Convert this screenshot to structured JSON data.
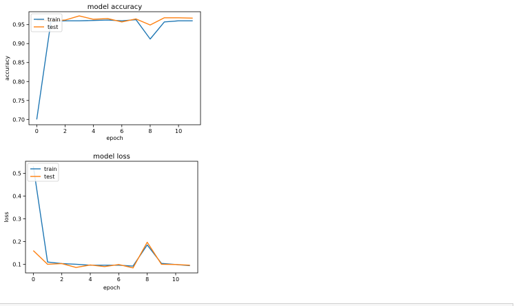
{
  "chart_data": [
    {
      "type": "line",
      "title": "model accuracy",
      "xlabel": "epoch",
      "ylabel": "accuracy",
      "xlim": [
        -0.55,
        11.55
      ],
      "ylim": [
        0.686,
        0.984
      ],
      "xticks": [
        0,
        2,
        4,
        6,
        8,
        10
      ],
      "yticks": [
        0.7,
        0.75,
        0.8,
        0.85,
        0.9,
        0.95
      ],
      "ytick_labels": [
        "0.70",
        "0.75",
        "0.80",
        "0.85",
        "0.90",
        "0.95"
      ],
      "legend": "upper left",
      "grid": false,
      "x": [
        0,
        1,
        2,
        3,
        4,
        5,
        6,
        7,
        8,
        9,
        10,
        11
      ],
      "series": [
        {
          "name": "train",
          "color": "#1f77b4",
          "values": [
            0.7,
            0.958,
            0.96,
            0.96,
            0.961,
            0.962,
            0.96,
            0.963,
            0.912,
            0.957,
            0.96,
            0.96
          ]
        },
        {
          "name": "test",
          "color": "#ff7f0e",
          "values": [
            0.962,
            0.96,
            0.962,
            0.973,
            0.964,
            0.966,
            0.957,
            0.965,
            0.949,
            0.968,
            0.968,
            0.967
          ]
        }
      ]
    },
    {
      "type": "line",
      "title": "model loss",
      "xlabel": "epoch",
      "ylabel": "loss",
      "xlim": [
        -0.55,
        11.55
      ],
      "ylim": [
        0.062,
        0.553
      ],
      "xticks": [
        0,
        2,
        4,
        6,
        8,
        10
      ],
      "yticks": [
        0.1,
        0.2,
        0.3,
        0.4,
        0.5
      ],
      "ytick_labels": [
        "0.1",
        "0.2",
        "0.3",
        "0.4",
        "0.5"
      ],
      "legend": "upper left",
      "grid": false,
      "x": [
        0,
        1,
        2,
        3,
        4,
        5,
        6,
        7,
        8,
        9,
        10,
        11
      ],
      "series": [
        {
          "name": "train",
          "color": "#1f77b4",
          "values": [
            0.531,
            0.11,
            0.103,
            0.1,
            0.096,
            0.096,
            0.096,
            0.092,
            0.185,
            0.104,
            0.099,
            0.094
          ]
        },
        {
          "name": "test",
          "color": "#ff7f0e",
          "values": [
            0.16,
            0.1,
            0.103,
            0.086,
            0.097,
            0.09,
            0.099,
            0.084,
            0.197,
            0.1,
            0.099,
            0.096
          ]
        }
      ]
    }
  ]
}
